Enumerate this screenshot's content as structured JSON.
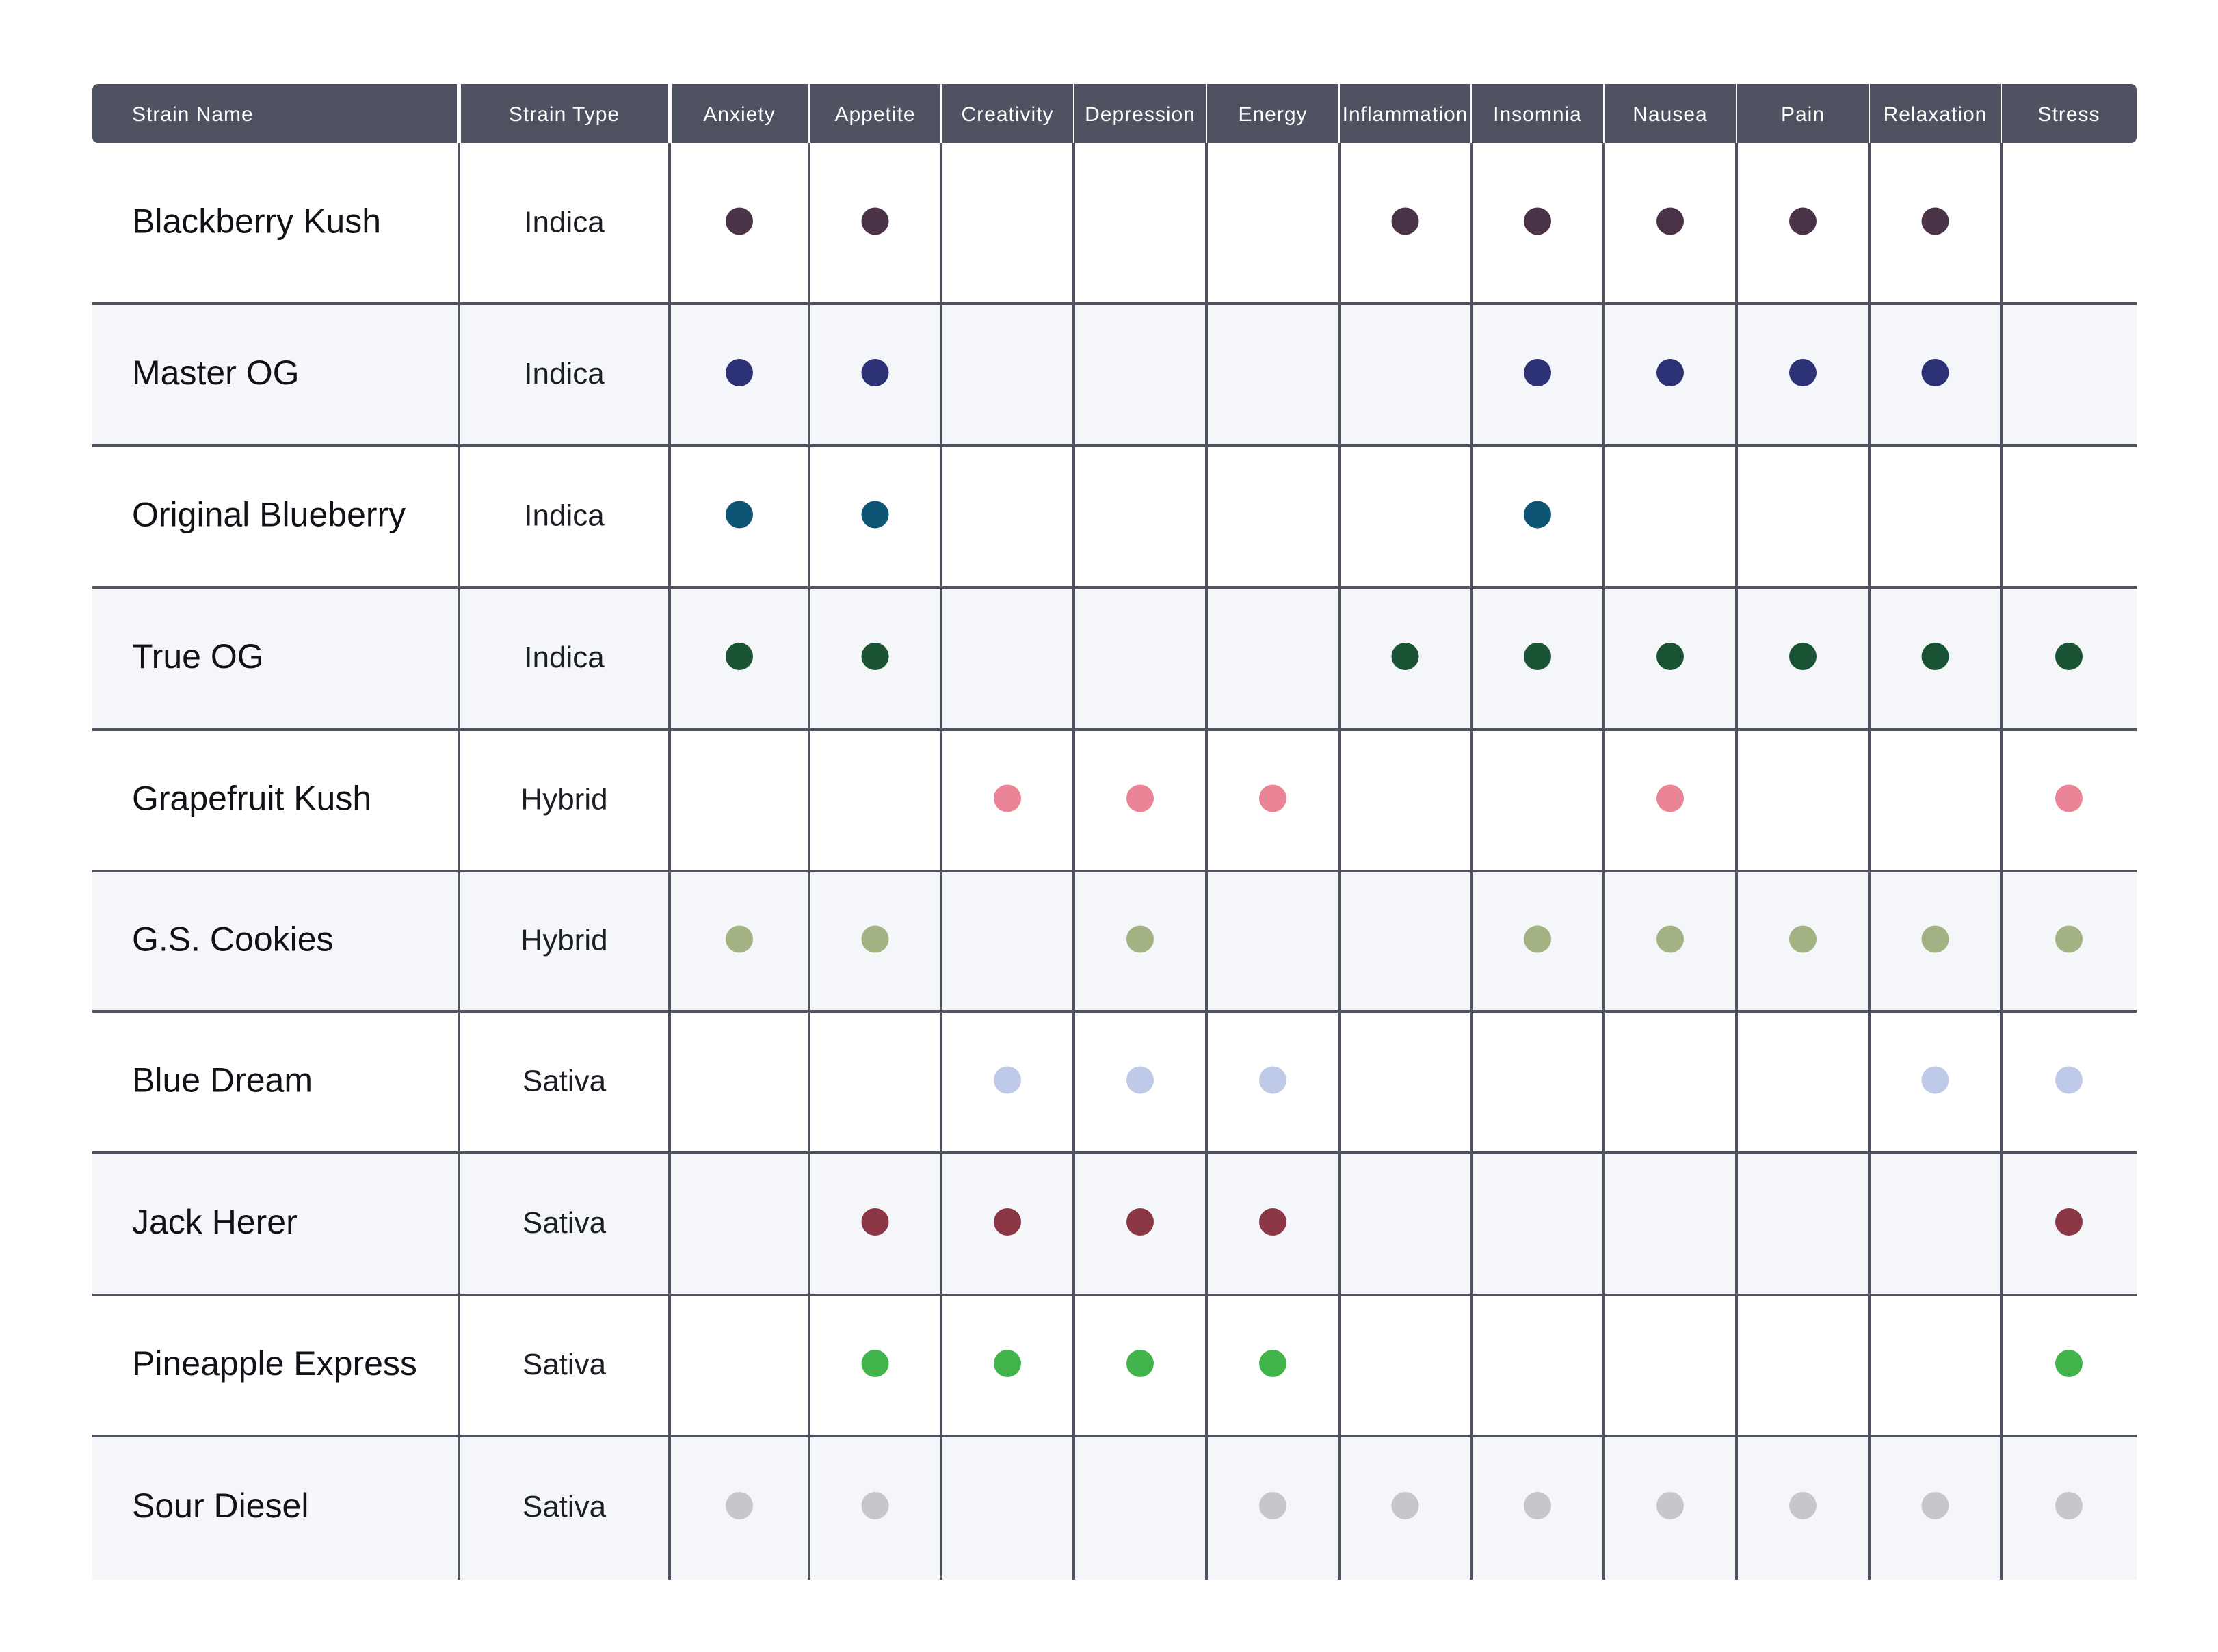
{
  "chart_data": {
    "type": "table",
    "columns": [
      "Strain Name",
      "Strain Type",
      "Anxiety",
      "Appetite",
      "Creativity",
      "Depression",
      "Energy",
      "Inflammation",
      "Insomnia",
      "Nausea",
      "Pain",
      "Relaxation",
      "Stress"
    ],
    "conditions": [
      "Anxiety",
      "Appetite",
      "Creativity",
      "Depression",
      "Energy",
      "Inflammation",
      "Insomnia",
      "Nausea",
      "Pain",
      "Relaxation",
      "Stress"
    ],
    "rows": [
      {
        "name": "Blackberry Kush",
        "type": "Indica",
        "color": "#4a3346",
        "marks": [
          1,
          1,
          0,
          0,
          0,
          1,
          1,
          1,
          1,
          1,
          0
        ]
      },
      {
        "name": "Master OG",
        "type": "Indica",
        "color": "#2d3276",
        "marks": [
          1,
          1,
          0,
          0,
          0,
          0,
          1,
          1,
          1,
          1,
          0
        ]
      },
      {
        "name": "Original Blueberry",
        "type": "Indica",
        "color": "#0e5474",
        "marks": [
          1,
          1,
          0,
          0,
          0,
          0,
          1,
          0,
          0,
          0,
          0
        ]
      },
      {
        "name": "True OG",
        "type": "Indica",
        "color": "#1b5434",
        "marks": [
          1,
          1,
          0,
          0,
          0,
          1,
          1,
          1,
          1,
          1,
          1
        ]
      },
      {
        "name": "Grapefruit Kush",
        "type": "Hybrid",
        "color": "#e88495",
        "marks": [
          0,
          0,
          1,
          1,
          1,
          0,
          0,
          1,
          0,
          0,
          1
        ]
      },
      {
        "name": "G.S. Cookies",
        "type": "Hybrid",
        "color": "#a2b283",
        "marks": [
          1,
          1,
          0,
          1,
          0,
          0,
          1,
          1,
          1,
          1,
          1
        ]
      },
      {
        "name": "Blue Dream",
        "type": "Sativa",
        "color": "#bfc9e8",
        "marks": [
          0,
          0,
          1,
          1,
          1,
          0,
          0,
          0,
          0,
          1,
          1
        ]
      },
      {
        "name": "Jack Herer",
        "type": "Sativa",
        "color": "#8a3644",
        "marks": [
          0,
          1,
          1,
          1,
          1,
          0,
          0,
          0,
          0,
          0,
          1
        ]
      },
      {
        "name": "Pineapple Express",
        "type": "Sativa",
        "color": "#41b54c",
        "marks": [
          0,
          1,
          1,
          1,
          1,
          0,
          0,
          0,
          0,
          0,
          1
        ]
      },
      {
        "name": "Sour Diesel",
        "type": "Sativa",
        "color": "#c6c7cb",
        "marks": [
          1,
          1,
          0,
          0,
          1,
          1,
          1,
          1,
          1,
          1,
          1
        ]
      }
    ]
  },
  "colors": {
    "header_bg": "#4f5260",
    "header_text": "#ffffff",
    "grid_line": "#50535f",
    "row_alt_bg": "#f5f6f9",
    "row_bg": "#ffffff",
    "name_text": "#101218",
    "type_text": "#1c1e25"
  }
}
